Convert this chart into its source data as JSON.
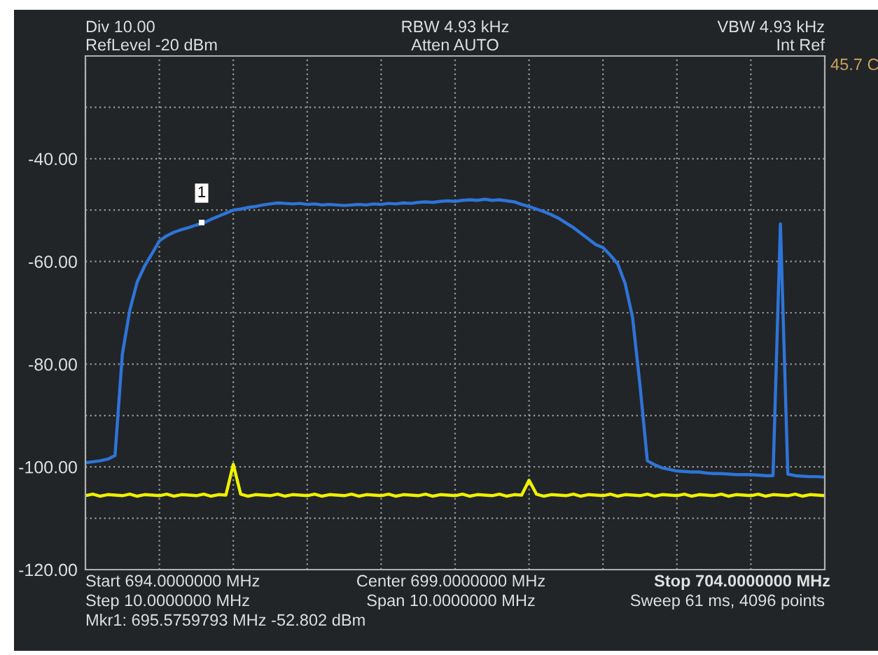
{
  "chart_data": {
    "type": "line",
    "annotations": [
      "Div 10.00",
      "RefLevel -20 dBm",
      "RBW 4.93 kHz",
      "Atten AUTO",
      "VBW 4.93 kHz",
      "Int Ref",
      "45.7 C",
      "Start 694.0000000 MHz",
      "Step 10.0000000 MHz",
      "Mkr1: 695.5759793 MHz -52.802 dBm",
      "Center 699.0000000 MHz",
      "Span 10.0000000 MHz",
      "Stop 704.0000000 MHz",
      "Sweep 61 ms, 4096 points",
      "1"
    ],
    "categories": [
      null,
      null,
      null,
      null,
      null,
      null,
      null,
      null,
      null,
      null,
      null,
      null,
      null,
      null,
      null,
      null,
      null,
      null,
      null,
      null,
      null,
      null,
      null,
      null,
      null,
      null,
      null,
      null,
      null,
      null,
      null,
      null,
      null,
      null,
      null,
      null,
      null,
      null,
      null,
      null,
      null,
      null,
      null,
      null,
      null,
      null,
      null,
      null,
      null,
      null,
      null,
      null,
      null,
      null,
      null,
      null,
      null,
      null,
      null,
      null,
      null,
      null,
      null,
      null,
      null,
      null,
      null,
      null,
      null,
      null,
      null,
      null,
      null,
      null,
      null,
      null,
      null,
      null,
      null,
      null,
      null,
      null,
      null,
      null,
      null,
      null,
      null,
      null,
      null,
      null,
      null,
      null,
      null,
      null,
      null,
      null,
      null,
      null,
      null,
      null,
      null
    ],
    "series": [
      {
        "color": "#2f74d8",
        "values": [
          -99.2,
          -99.0,
          -98.8,
          -98.5,
          -97.8,
          -78,
          -69.5,
          -64,
          -60.9,
          -58.5,
          -56,
          -55,
          -54.3,
          -53.8,
          -53.4,
          -52.9,
          -52.5,
          -51.8,
          -51.2,
          -50.6,
          -50.0,
          -49.8,
          -49.5,
          -49.3,
          -49.0,
          -48.8,
          -48.6,
          -48.7,
          -48.8,
          -48.7,
          -48.9,
          -48.8,
          -49.0,
          -48.9,
          -49.0,
          -49.1,
          -49.0,
          -48.9,
          -49.0,
          -48.8,
          -48.9,
          -48.7,
          -48.8,
          -48.6,
          -48.7,
          -48.5,
          -48.4,
          -48.5,
          -48.3,
          -48.2,
          -48.3,
          -48.1,
          -48.0,
          -48.1,
          -47.9,
          -48.1,
          -48.0,
          -48.2,
          -48.4,
          -48.9,
          -49.3,
          -49.8,
          -50.3,
          -50.9,
          -51.6,
          -52.5,
          -53.4,
          -54.5,
          -55.6,
          -56.7,
          -57.3,
          -58.8,
          -60.5,
          -64.3,
          -70.9,
          -84,
          -98.8,
          -99.6,
          -100.2,
          -100.5,
          -100.8,
          -100.9,
          -101.0,
          -101.0,
          -101.2,
          -101.3,
          -101.3,
          -101.4,
          -101.5,
          -101.5,
          -101.5,
          -101.6,
          -101.7,
          -101.7,
          -52.7,
          -101.4,
          -101.7,
          -101.8,
          -101.9,
          -101.9,
          -102.0
        ]
      },
      {
        "color": "#f0f000",
        "values": [
          -105.6,
          -105.3,
          -105.7,
          -105.4,
          -105.5,
          -105.6,
          -105.3,
          -105.7,
          -105.4,
          -105.5,
          -105.6,
          -105.3,
          -105.7,
          -105.4,
          -105.5,
          -105.6,
          -105.3,
          -105.7,
          -105.4,
          -105.5,
          -99.5,
          -105.3,
          -105.7,
          -105.4,
          -105.5,
          -105.6,
          -105.3,
          -105.7,
          -105.4,
          -105.5,
          -105.6,
          -105.3,
          -105.7,
          -105.4,
          -105.5,
          -105.6,
          -105.3,
          -105.7,
          -105.4,
          -105.5,
          -105.6,
          -105.3,
          -105.7,
          -105.4,
          -105.5,
          -105.6,
          -105.3,
          -105.7,
          -105.4,
          -105.5,
          -105.6,
          -105.3,
          -105.7,
          -105.4,
          -105.5,
          -105.6,
          -105.3,
          -105.7,
          -105.4,
          -105.5,
          -102.6,
          -105.3,
          -105.7,
          -105.4,
          -105.5,
          -105.6,
          -105.3,
          -105.7,
          -105.4,
          -105.5,
          -105.6,
          -105.3,
          -105.7,
          -105.4,
          -105.5,
          -105.6,
          -105.3,
          -105.7,
          -105.4,
          -105.5,
          -105.6,
          -105.3,
          -105.7,
          -105.4,
          -105.5,
          -105.6,
          -105.3,
          -105.7,
          -105.4,
          -105.5,
          -105.6,
          -105.3,
          -105.7,
          -105.4,
          -105.5,
          -105.6,
          -105.3,
          -105.7,
          -105.4,
          -105.5,
          -105.6
        ]
      }
    ],
    "ylim": [
      -120,
      -20
    ],
    "yticks": [
      {
        "value": -120,
        "label": "-120.00"
      },
      {
        "value": -110,
        "label": null
      },
      {
        "value": -100,
        "label": "-100.00"
      },
      {
        "value": -90,
        "label": null
      },
      {
        "value": -80,
        "label": "-80.00"
      },
      {
        "value": -70,
        "label": null
      },
      {
        "value": -60,
        "label": "-60.00"
      },
      {
        "value": -50,
        "label": null
      },
      {
        "value": -40,
        "label": "-40.00"
      },
      {
        "value": -30,
        "label": null
      },
      {
        "value": -20,
        "label": null
      }
    ],
    "grid": true,
    "marker": "none",
    "line_style": "solid"
  }
}
